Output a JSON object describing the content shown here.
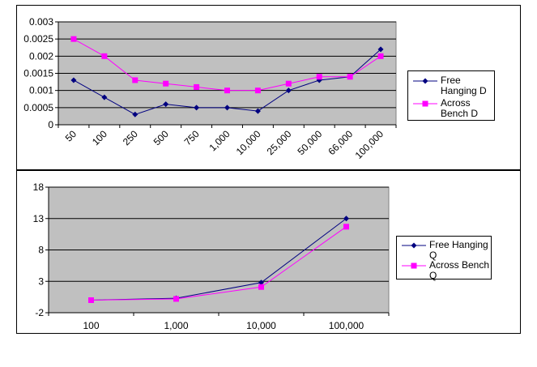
{
  "colors": {
    "plot_bg": "#c0c0c0",
    "free_hanging": "#000080",
    "across_bench": "#ff00ff"
  },
  "chart_data": [
    {
      "type": "line",
      "title": "",
      "xlabel": "",
      "ylabel": "",
      "categories": [
        "50",
        "100",
        "250",
        "500",
        "750",
        "1,000",
        "10,000",
        "25,000",
        "50,000",
        "66,000",
        "100,000"
      ],
      "ylim": [
        0,
        0.003
      ],
      "yticks": [
        "0",
        "0.0005",
        "0.001",
        "0.0015",
        "0.002",
        "0.0025",
        "0.003"
      ],
      "grid": true,
      "legend_position": "right",
      "series": [
        {
          "name": "Free Hanging D",
          "values": [
            0.0013,
            0.0008,
            0.0003,
            0.0006,
            0.0005,
            0.0005,
            0.0004,
            0.001,
            0.0013,
            0.0014,
            0.0022
          ]
        },
        {
          "name": "Across Bench D",
          "values": [
            0.0025,
            0.002,
            0.0013,
            0.0012,
            0.0011,
            0.001,
            0.001,
            0.0012,
            0.0014,
            0.0014,
            0.002
          ]
        }
      ]
    },
    {
      "type": "line",
      "title": "",
      "xlabel": "",
      "ylabel": "",
      "categories": [
        "100",
        "1,000",
        "10,000",
        "100,000"
      ],
      "ylim": [
        -2,
        18
      ],
      "yticks": [
        "-2",
        "3",
        "8",
        "13",
        "18"
      ],
      "grid": true,
      "legend_position": "right",
      "series": [
        {
          "name": "Free Hanging Q",
          "values": [
            0.0,
            0.3,
            2.8,
            13.0
          ]
        },
        {
          "name": "Across Bench Q",
          "values": [
            0.0,
            0.2,
            2.1,
            11.7
          ]
        }
      ]
    }
  ]
}
